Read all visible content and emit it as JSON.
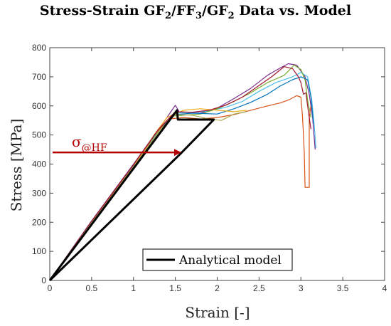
{
  "chart_data": {
    "type": "line",
    "title_parts": [
      {
        "t": "Stress-Strain GF"
      },
      {
        "t": "2",
        "sub": true
      },
      {
        "t": "/FF"
      },
      {
        "t": "3",
        "sub": true
      },
      {
        "t": "/GF"
      },
      {
        "t": "2",
        "sub": true
      },
      {
        "t": " Data vs. Model"
      }
    ],
    "xlabel": "Strain [-]",
    "ylabel": "Stress [MPa]",
    "xlim": [
      0,
      4
    ],
    "ylim": [
      0,
      800
    ],
    "xticks": [
      "0",
      "0.5",
      "1",
      "1.5",
      "2",
      "2.5",
      "3",
      "3.5",
      "4"
    ],
    "yticks": [
      "0",
      "100",
      "200",
      "300",
      "400",
      "500",
      "600",
      "700",
      "800"
    ],
    "grid": false,
    "legend": {
      "position": "bottom-center",
      "entries": [
        "Analytical model"
      ]
    },
    "annotation": {
      "label": "σ",
      "subscript": "@HF",
      "color": "#b40000",
      "arrow_from": [
        0,
        440
      ],
      "arrow_to": [
        1.57,
        440
      ]
    },
    "series": [
      {
        "color": "#000000",
        "width": 3,
        "points": [
          [
            0,
            0
          ],
          [
            1.52,
            585
          ],
          [
            1.53,
            553
          ],
          [
            1.96,
            553
          ],
          [
            1.56,
            435
          ],
          [
            0,
            0
          ]
        ]
      },
      {
        "color": "#7b2d8e",
        "points": [
          [
            0,
            0
          ],
          [
            0.5,
            205
          ],
          [
            1.0,
            400
          ],
          [
            1.2,
            480
          ],
          [
            1.4,
            560
          ],
          [
            1.5,
            602
          ],
          [
            1.55,
            578
          ],
          [
            1.8,
            575
          ],
          [
            2.0,
            592
          ],
          [
            2.2,
            625
          ],
          [
            2.4,
            660
          ],
          [
            2.6,
            705
          ],
          [
            2.75,
            730
          ],
          [
            2.85,
            745
          ],
          [
            2.95,
            740
          ],
          [
            3.05,
            700
          ],
          [
            3.1,
            640
          ],
          [
            3.14,
            560
          ],
          [
            3.17,
            450
          ]
        ]
      },
      {
        "color": "#4dbeee",
        "points": [
          [
            0,
            0
          ],
          [
            0.5,
            200
          ],
          [
            1.0,
            392
          ],
          [
            1.3,
            515
          ],
          [
            1.5,
            575
          ],
          [
            1.7,
            578
          ],
          [
            1.9,
            582
          ],
          [
            2.1,
            595
          ],
          [
            2.3,
            615
          ],
          [
            2.5,
            650
          ],
          [
            2.7,
            680
          ],
          [
            2.9,
            700
          ],
          [
            3.0,
            715
          ],
          [
            3.08,
            700
          ],
          [
            3.13,
            620
          ],
          [
            3.16,
            530
          ],
          [
            3.18,
            455
          ]
        ]
      },
      {
        "color": "#77ac30",
        "points": [
          [
            0,
            0
          ],
          [
            0.5,
            198
          ],
          [
            1.0,
            390
          ],
          [
            1.3,
            510
          ],
          [
            1.45,
            565
          ],
          [
            1.6,
            568
          ],
          [
            1.8,
            572
          ],
          [
            2.0,
            590
          ],
          [
            2.2,
            615
          ],
          [
            2.4,
            645
          ],
          [
            2.6,
            680
          ],
          [
            2.8,
            705
          ],
          [
            2.92,
            740
          ],
          [
            3.0,
            725
          ],
          [
            3.05,
            690
          ],
          [
            3.08,
            620
          ],
          [
            3.12,
            560
          ]
        ]
      },
      {
        "color": "#0072bd",
        "points": [
          [
            0,
            0
          ],
          [
            0.5,
            202
          ],
          [
            1.0,
            395
          ],
          [
            1.3,
            518
          ],
          [
            1.5,
            570
          ],
          [
            1.7,
            575
          ],
          [
            2.0,
            572
          ],
          [
            2.2,
            590
          ],
          [
            2.4,
            612
          ],
          [
            2.6,
            640
          ],
          [
            2.75,
            668
          ],
          [
            2.9,
            690
          ],
          [
            3.0,
            700
          ],
          [
            3.08,
            690
          ],
          [
            3.12,
            630
          ],
          [
            3.15,
            540
          ]
        ]
      },
      {
        "color": "#d95319",
        "points": [
          [
            0,
            0
          ],
          [
            0.5,
            198
          ],
          [
            1.0,
            388
          ],
          [
            1.25,
            500
          ],
          [
            1.42,
            555
          ],
          [
            1.6,
            560
          ],
          [
            1.8,
            555
          ],
          [
            2.0,
            560
          ],
          [
            2.2,
            570
          ],
          [
            2.4,
            585
          ],
          [
            2.6,
            600
          ],
          [
            2.75,
            610
          ],
          [
            2.85,
            620
          ],
          [
            2.95,
            635
          ],
          [
            3.0,
            630
          ],
          [
            3.02,
            560
          ],
          [
            3.04,
            440
          ],
          [
            3.05,
            320
          ],
          [
            3.1,
            320
          ],
          [
            3.1,
            560
          ],
          [
            3.12,
            600
          ]
        ]
      },
      {
        "color": "#edb120",
        "points": [
          [
            0,
            0
          ],
          [
            0.5,
            200
          ],
          [
            1.0,
            392
          ],
          [
            1.25,
            502
          ],
          [
            1.4,
            560
          ],
          [
            1.6,
            585
          ],
          [
            1.8,
            590
          ],
          [
            2.0,
            585
          ],
          [
            2.2,
            580
          ],
          [
            2.35,
            585
          ]
        ]
      },
      {
        "color": "#a2142f",
        "points": [
          [
            0,
            0
          ],
          [
            0.5,
            203
          ],
          [
            1.0,
            398
          ],
          [
            1.3,
            520
          ],
          [
            1.5,
            580
          ],
          [
            1.7,
            578
          ],
          [
            1.9,
            585
          ],
          [
            2.1,
            602
          ],
          [
            2.3,
            630
          ],
          [
            2.5,
            670
          ],
          [
            2.65,
            700
          ],
          [
            2.8,
            735
          ],
          [
            2.9,
            728
          ],
          [
            2.97,
            700
          ],
          [
            3.0,
            680
          ],
          [
            3.03,
            640
          ],
          [
            3.06,
            645
          ],
          [
            3.08,
            600
          ],
          [
            3.1,
            560
          ],
          [
            3.12,
            520
          ]
        ]
      },
      {
        "color": "#aaaa55",
        "points": [
          [
            0,
            0
          ],
          [
            0.5,
            199
          ],
          [
            1.0,
            390
          ],
          [
            1.3,
            512
          ],
          [
            1.5,
            570
          ],
          [
            1.7,
            568
          ],
          [
            1.9,
            555
          ],
          [
            2.05,
            550
          ],
          [
            2.2,
            572
          ],
          [
            2.35,
            580
          ]
        ]
      }
    ]
  }
}
